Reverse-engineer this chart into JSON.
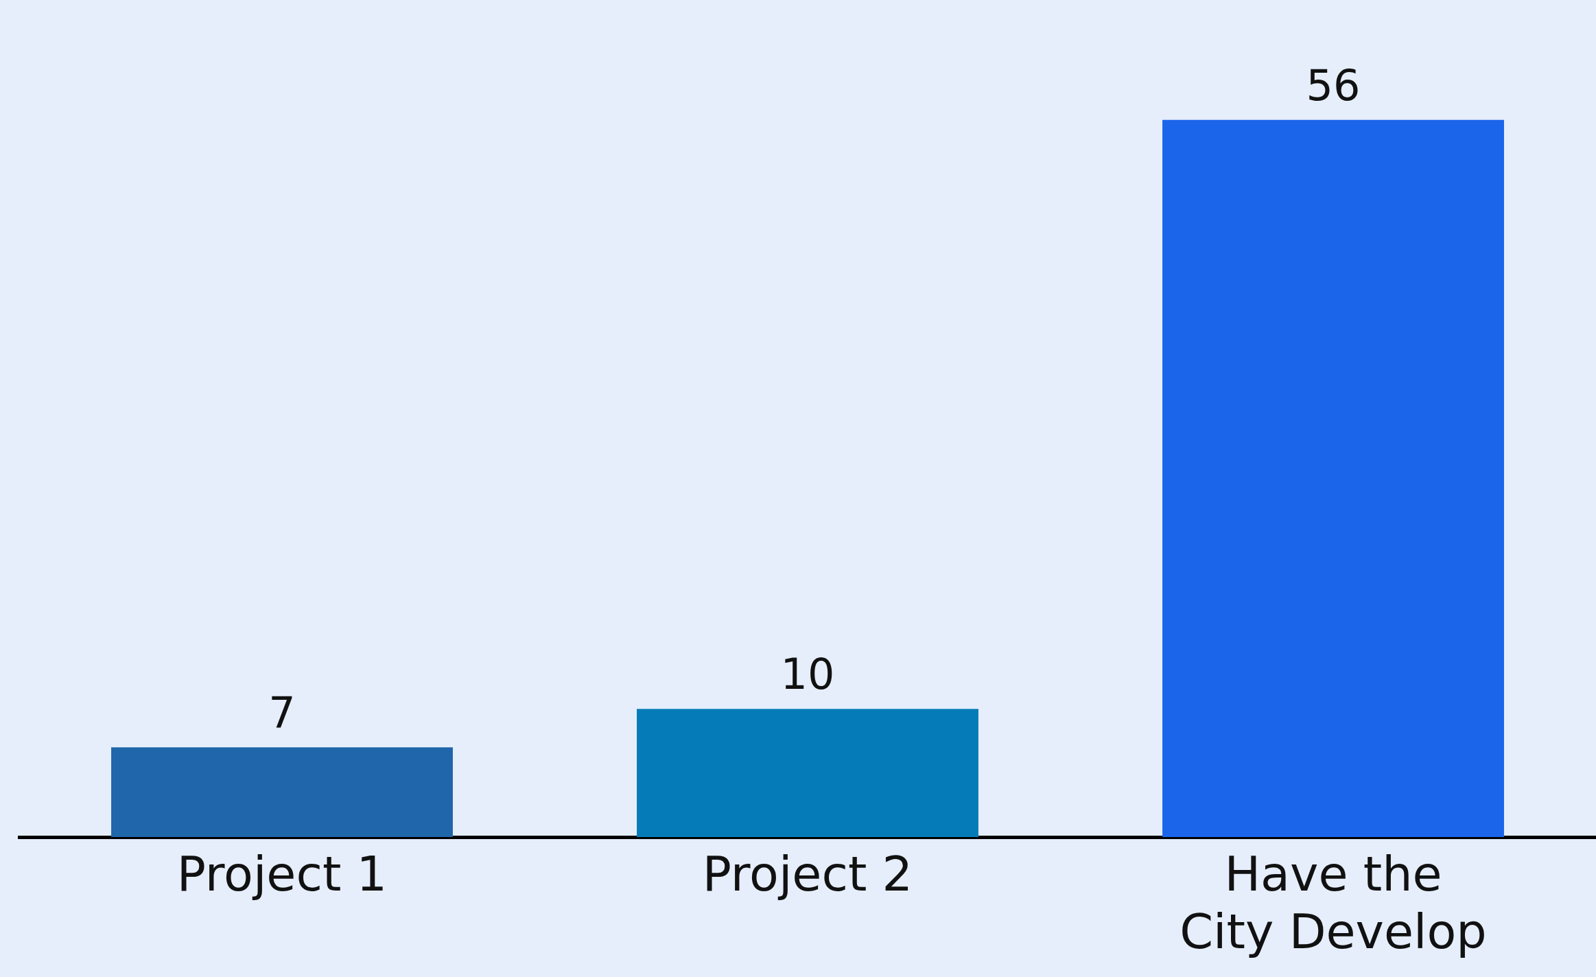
{
  "chart_data": {
    "type": "bar",
    "categories": [
      "Project 1",
      "Project 2",
      "Have the City Develop"
    ],
    "values": [
      7,
      10,
      56
    ],
    "colors": [
      "#1f66aa",
      "#057cb8",
      "#1b65eb"
    ],
    "data_labels": true,
    "grid": false,
    "legend": false,
    "tick_labels": "x"
  }
}
